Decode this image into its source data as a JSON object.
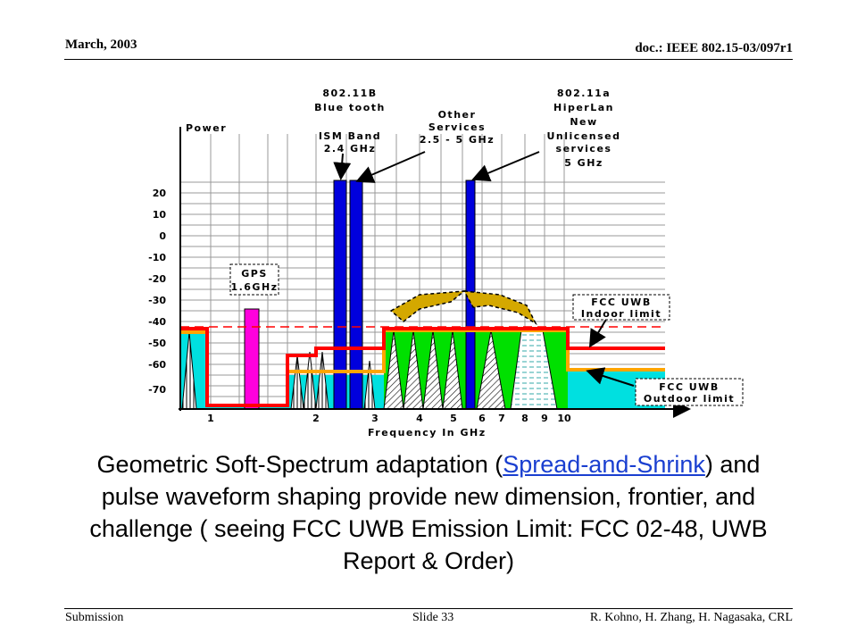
{
  "header": {
    "date": "March, 2003",
    "doc_id": "doc.: IEEE 802.15-03/097r1"
  },
  "footer": {
    "left": "Submission",
    "center": "Slide 33",
    "right": "R. Kohno, H. Zhang, H. Nagasaka, CRL"
  },
  "diagram": {
    "y_axis_label": "Power",
    "x_axis_label": "Frequency In GHz",
    "y_ticks": [
      "20",
      "10",
      "0",
      "-10",
      "-20",
      "-30",
      "-40",
      "-50",
      "-60",
      "-70"
    ],
    "x_ticks": [
      "1",
      "2",
      "3",
      "4",
      "5",
      "6",
      "7",
      "8",
      "9",
      "10"
    ],
    "callouts": {
      "band_80211b": [
        "802.11B",
        "Blue tooth",
        "",
        "ISM Band",
        "2.4 GHz"
      ],
      "other_services": [
        "Other",
        "Services",
        "2.5 - 5 GHz"
      ],
      "band_80211a": [
        "802.11a",
        "HiperLan",
        "New",
        "Unlicensed",
        "services",
        "5 GHz"
      ],
      "gps": [
        "GPS",
        "1.6GHz"
      ],
      "fcc_indoor": [
        "FCC UWB",
        "Indoor limit"
      ],
      "fcc_outdoor": [
        "FCC UWB",
        "Outdoor limit"
      ]
    },
    "colors": {
      "fcc_indoor_limit": "#ff0000",
      "fcc_outdoor_limit": "#ffa500",
      "bluetooth_bands": "#0000dd",
      "gps_band": "#ff00dd",
      "uwb_region": "#00e000",
      "outdoor_fill": "#00e0e0",
      "adaptation_arrows": "#d4a800"
    }
  },
  "caption": {
    "part1": "Geometric Soft-Spectrum adaptation (",
    "link": "Spread-and-Shrink",
    "part2": ") and pulse waveform shaping provide new dimension, frontier, and challenge ( seeing FCC UWB Emission Limit: FCC 02-48, UWB Report & Order)"
  }
}
